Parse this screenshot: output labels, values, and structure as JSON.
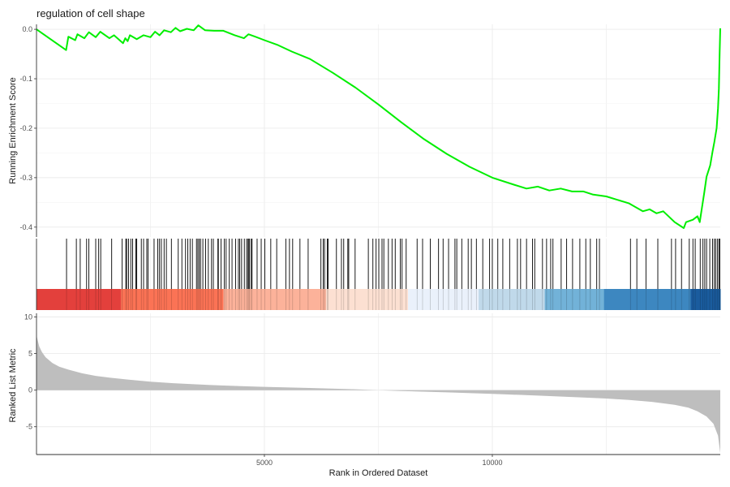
{
  "chart_data": {
    "type": "line",
    "title": "regulation of cell shape",
    "x_axis": {
      "label": "Rank in Ordered Dataset",
      "range": [
        1,
        15000
      ],
      "ticks": [
        5000,
        10000
      ],
      "tick_labels": [
        "5000",
        "10000"
      ]
    },
    "es_panel": {
      "ylabel": "Running Enrichment Score",
      "ylim": [
        -0.42,
        0.01
      ],
      "ticks": [
        0.0,
        -0.1,
        -0.2,
        -0.3,
        -0.4
      ],
      "tick_labels": [
        "0.0",
        "-0.1",
        "-0.2",
        "-0.3",
        "-0.4"
      ],
      "line_color": "#00ee00",
      "points": [
        [
          0,
          0.0
        ],
        [
          650,
          -0.042
        ],
        [
          700,
          -0.015
        ],
        [
          850,
          -0.022
        ],
        [
          900,
          -0.01
        ],
        [
          1050,
          -0.018
        ],
        [
          1150,
          -0.006
        ],
        [
          1300,
          -0.016
        ],
        [
          1400,
          -0.005
        ],
        [
          1600,
          -0.018
        ],
        [
          1700,
          -0.012
        ],
        [
          1900,
          -0.028
        ],
        [
          1950,
          -0.018
        ],
        [
          2000,
          -0.024
        ],
        [
          2050,
          -0.012
        ],
        [
          2200,
          -0.02
        ],
        [
          2350,
          -0.012
        ],
        [
          2500,
          -0.016
        ],
        [
          2600,
          -0.005
        ],
        [
          2700,
          -0.012
        ],
        [
          2800,
          -0.002
        ],
        [
          2950,
          -0.006
        ],
        [
          3050,
          0.003
        ],
        [
          3150,
          -0.004
        ],
        [
          3300,
          0.001
        ],
        [
          3450,
          -0.002
        ],
        [
          3550,
          0.008
        ],
        [
          3700,
          -0.002
        ],
        [
          3900,
          -0.003
        ],
        [
          4100,
          -0.003
        ],
        [
          4350,
          -0.012
        ],
        [
          4550,
          -0.018
        ],
        [
          4650,
          -0.01
        ],
        [
          4800,
          -0.015
        ],
        [
          5000,
          -0.022
        ],
        [
          5300,
          -0.032
        ],
        [
          5600,
          -0.045
        ],
        [
          6000,
          -0.06
        ],
        [
          6500,
          -0.088
        ],
        [
          7000,
          -0.118
        ],
        [
          7500,
          -0.152
        ],
        [
          8000,
          -0.188
        ],
        [
          8500,
          -0.222
        ],
        [
          9000,
          -0.252
        ],
        [
          9500,
          -0.278
        ],
        [
          10000,
          -0.3
        ],
        [
          10500,
          -0.315
        ],
        [
          10750,
          -0.322
        ],
        [
          11000,
          -0.318
        ],
        [
          11250,
          -0.326
        ],
        [
          11500,
          -0.322
        ],
        [
          11750,
          -0.328
        ],
        [
          12000,
          -0.328
        ],
        [
          12200,
          -0.334
        ],
        [
          12500,
          -0.338
        ],
        [
          13000,
          -0.352
        ],
        [
          13300,
          -0.368
        ],
        [
          13450,
          -0.364
        ],
        [
          13600,
          -0.372
        ],
        [
          13750,
          -0.368
        ],
        [
          14000,
          -0.39
        ],
        [
          14200,
          -0.402
        ],
        [
          14250,
          -0.39
        ],
        [
          14400,
          -0.385
        ],
        [
          14500,
          -0.378
        ],
        [
          14550,
          -0.39
        ],
        [
          14600,
          -0.36
        ],
        [
          14650,
          -0.33
        ],
        [
          14700,
          -0.298
        ],
        [
          14780,
          -0.275
        ],
        [
          14830,
          -0.248
        ],
        [
          14870,
          -0.228
        ],
        [
          14920,
          -0.2
        ],
        [
          14950,
          -0.16
        ],
        [
          14970,
          -0.12
        ],
        [
          14985,
          -0.05
        ],
        [
          15000,
          0.002
        ]
      ]
    },
    "hit_panel": {
      "hits": [
        660,
        875,
        960,
        1100,
        1150,
        1300,
        1365,
        1410,
        1650,
        1880,
        1960,
        1980,
        2020,
        2070,
        2110,
        2180,
        2200,
        2300,
        2350,
        2420,
        2450,
        2580,
        2660,
        2700,
        2740,
        2800,
        2850,
        2960,
        3110,
        3190,
        3270,
        3320,
        3370,
        3420,
        3510,
        3540,
        3570,
        3600,
        3650,
        3710,
        3770,
        3840,
        3880,
        3980,
        3990,
        4050,
        4120,
        4160,
        4230,
        4290,
        4370,
        4430,
        4460,
        4500,
        4560,
        4610,
        4640,
        4660,
        4670,
        4710,
        4730,
        4840,
        4930,
        5010,
        5140,
        5270,
        5470,
        5550,
        5620,
        5780,
        5960,
        6240,
        6290,
        6320,
        6380,
        6400,
        6580,
        6690,
        6740,
        6830,
        6850,
        6990,
        7280,
        7380,
        7450,
        7510,
        7580,
        7620,
        7720,
        7800,
        7870,
        7980,
        8020,
        8110,
        8350,
        8470,
        8640,
        8820,
        8920,
        9040,
        9180,
        9220,
        9330,
        9470,
        9540,
        9650,
        9790,
        9940,
        10000,
        10120,
        10230,
        10380,
        10550,
        10620,
        10750,
        10880,
        10930,
        11100,
        11190,
        11280,
        11330,
        11510,
        11630,
        11760,
        11920,
        12050,
        12150,
        12290,
        12350,
        13030,
        13170,
        13370,
        13630,
        13930,
        14020,
        14150,
        14320,
        14400,
        14450,
        14560,
        14620,
        14660,
        14700,
        14770,
        14830,
        14870,
        14900,
        14940,
        14970,
        14990
      ],
      "color_bar": [
        {
          "from": 0,
          "to": 1850,
          "color": "#e3403c"
        },
        {
          "from": 1850,
          "to": 4100,
          "color": "#fb7355"
        },
        {
          "from": 4100,
          "to": 6350,
          "color": "#fcb29a"
        },
        {
          "from": 6350,
          "to": 8150,
          "color": "#fce0d2"
        },
        {
          "from": 8150,
          "to": 9700,
          "color": "#eaf1fb"
        },
        {
          "from": 9700,
          "to": 11150,
          "color": "#c0d9ea"
        },
        {
          "from": 11150,
          "to": 12450,
          "color": "#72b2d8"
        },
        {
          "from": 12450,
          "to": 14350,
          "color": "#3d87c0"
        },
        {
          "from": 14350,
          "to": 15000,
          "color": "#1a5c9e"
        }
      ]
    },
    "rank_panel": {
      "ylabel": "Ranked List Metric",
      "ylim": [
        -8.8,
        10.5
      ],
      "ticks": [
        10,
        5,
        0,
        -5
      ],
      "tick_labels": [
        "10",
        "5",
        "0",
        "-5"
      ],
      "fill_color": "#bebebe",
      "points": [
        [
          0,
          7.5
        ],
        [
          25,
          6.9
        ],
        [
          60,
          6.0
        ],
        [
          120,
          5.2
        ],
        [
          200,
          4.5
        ],
        [
          350,
          3.7
        ],
        [
          500,
          3.2
        ],
        [
          700,
          2.8
        ],
        [
          1000,
          2.3
        ],
        [
          1300,
          1.95
        ],
        [
          1600,
          1.7
        ],
        [
          2000,
          1.45
        ],
        [
          2500,
          1.15
        ],
        [
          3000,
          0.95
        ],
        [
          3500,
          0.8
        ],
        [
          4000,
          0.65
        ],
        [
          4500,
          0.55
        ],
        [
          5000,
          0.45
        ],
        [
          6000,
          0.3
        ],
        [
          7000,
          0.12
        ],
        [
          7500,
          0.0
        ],
        [
          8000,
          -0.12
        ],
        [
          9000,
          -0.3
        ],
        [
          10000,
          -0.5
        ],
        [
          11000,
          -0.75
        ],
        [
          12000,
          -1.0
        ],
        [
          12500,
          -1.15
        ],
        [
          13000,
          -1.35
        ],
        [
          13500,
          -1.6
        ],
        [
          14000,
          -2.0
        ],
        [
          14300,
          -2.4
        ],
        [
          14500,
          -2.9
        ],
        [
          14700,
          -3.6
        ],
        [
          14850,
          -4.6
        ],
        [
          14950,
          -6.2
        ],
        [
          15000,
          -8.6
        ]
      ]
    }
  }
}
